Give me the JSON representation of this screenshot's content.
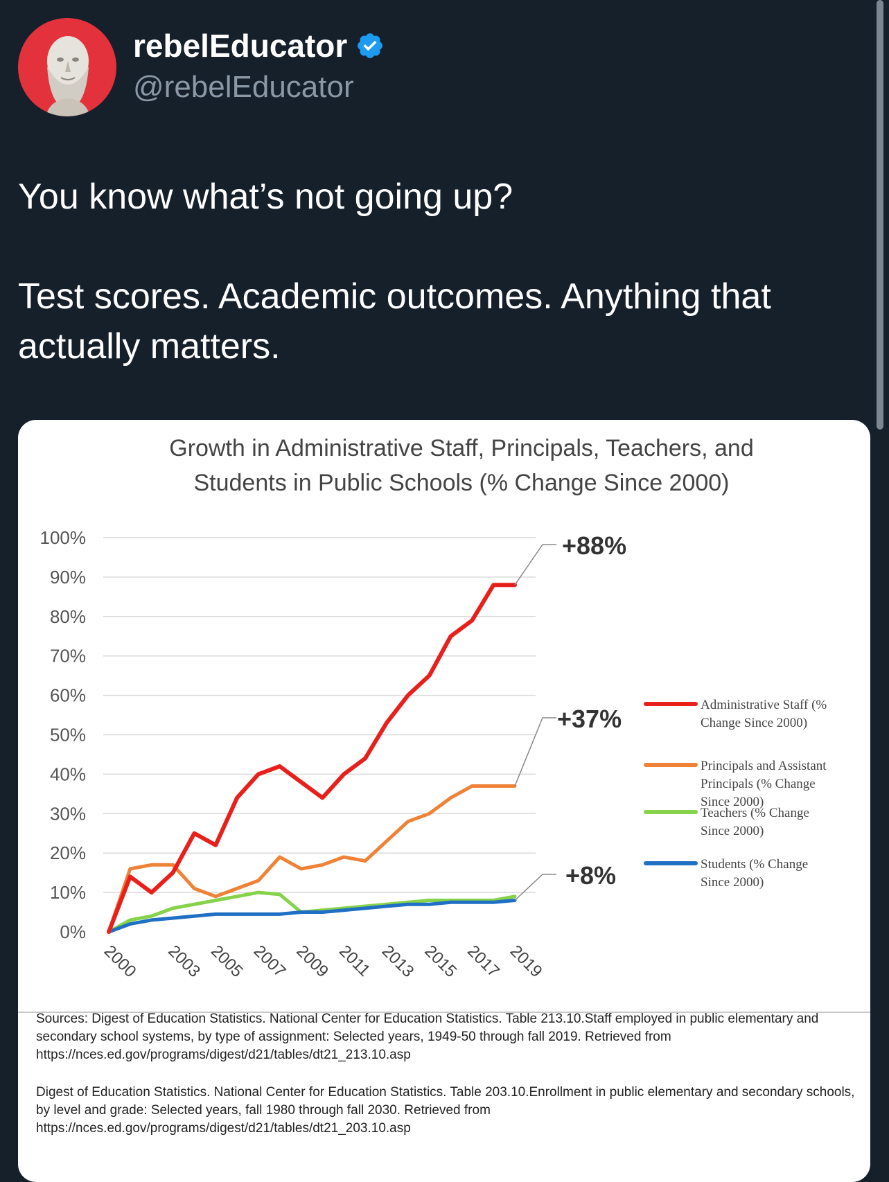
{
  "author": {
    "display_name": "rebelEducator",
    "handle": "@rebelEducator",
    "verified_icon": "verified-badge-icon",
    "avatar_icon": "bust-portrait-icon"
  },
  "tweet": {
    "paragraphs": [
      "You know what’s not going up?",
      "Test scores. Academic outcomes. Anything that actually matters."
    ]
  },
  "chart_data": {
    "type": "line",
    "title": "Growth in Administrative Staff, Principals, Teachers, and Students in Public Schools (% Change Since 2000)",
    "title_lines": [
      "Growth in Administrative Staff, Principals, Teachers, and",
      "Students in Public Schools (% Change Since 2000)"
    ],
    "ylim": [
      0,
      100
    ],
    "y_ticks": [
      "100%",
      "90%",
      "80%",
      "70%",
      "60%",
      "50%",
      "40%",
      "30%",
      "20%",
      "10%",
      "0%"
    ],
    "x_tick_labels": [
      "2000",
      "2003",
      "2005",
      "2007",
      "2009",
      "2011",
      "2013",
      "2015",
      "2017",
      "2019"
    ],
    "x_range": [
      2000,
      2019
    ],
    "grid": true,
    "legend_position": "right",
    "series": [
      {
        "name": "Administrative Staff (% Change Since 2000)",
        "legend_lines": [
          "Administrative Staff (%",
          "Change Since 2000)"
        ],
        "color": "#e8201b",
        "x": [
          2000,
          2001,
          2002,
          2003,
          2004,
          2005,
          2006,
          2007,
          2008,
          2009,
          2010,
          2011,
          2012,
          2013,
          2014,
          2015,
          2016,
          2017,
          2018,
          2019
        ],
        "y": [
          0,
          14,
          10,
          15,
          25,
          22,
          34,
          40,
          42,
          38,
          34,
          40,
          44,
          53,
          60,
          65,
          75,
          79,
          88,
          88
        ],
        "end_label": "+88%"
      },
      {
        "name": "Principals and Assistant Principals (% Change Since 2000)",
        "legend_lines": [
          "Principals and Assistant",
          "Principals (% Change",
          "Since 2000)"
        ],
        "color": "#ef8236",
        "x": [
          2000,
          2001,
          2002,
          2003,
          2004,
          2005,
          2006,
          2007,
          2008,
          2009,
          2010,
          2011,
          2012,
          2013,
          2014,
          2015,
          2016,
          2017,
          2018,
          2019
        ],
        "y": [
          0,
          16,
          17,
          17,
          11,
          9,
          11,
          13,
          19,
          16,
          17,
          19,
          18,
          23,
          28,
          30,
          34,
          37,
          37,
          37
        ],
        "end_label": "+37%"
      },
      {
        "name": "Teachers (% Change Since 2000)",
        "legend_lines": [
          "Teachers (% Change",
          "Since 2000)"
        ],
        "color": "#86d24a",
        "x": [
          2000,
          2001,
          2002,
          2003,
          2004,
          2005,
          2006,
          2007,
          2008,
          2009,
          2010,
          2011,
          2012,
          2013,
          2014,
          2015,
          2016,
          2017,
          2018,
          2019
        ],
        "y": [
          0,
          3,
          4,
          6,
          7,
          8,
          9,
          10,
          9.5,
          5,
          5.5,
          6,
          6.5,
          7,
          7.5,
          8,
          8,
          8,
          8,
          9
        ]
      },
      {
        "name": "Students (% Change Since 2000)",
        "legend_lines": [
          "Students (% Change",
          "Since 2000)"
        ],
        "color": "#1f6fc5",
        "x": [
          2000,
          2001,
          2002,
          2003,
          2004,
          2005,
          2006,
          2007,
          2008,
          2009,
          2010,
          2011,
          2012,
          2013,
          2014,
          2015,
          2016,
          2017,
          2018,
          2019
        ],
        "y": [
          0,
          2,
          3,
          3.5,
          4,
          4.5,
          4.5,
          4.5,
          4.5,
          5,
          5,
          5.5,
          6,
          6.5,
          7,
          7,
          7.5,
          7.5,
          7.5,
          8
        ],
        "end_label": "+8%"
      }
    ]
  },
  "sources": {
    "paragraphs": [
      "Sources: Digest of Education Statistics. National Center for Education Statistics. Table 213.10.Staff employed in public elementary and secondary school systems, by type of assignment: Selected years, 1949-50 through fall 2019. Retrieved from https://nces.ed.gov/programs/digest/d21/tables/dt21_213.10.asp",
      "Digest of Education Statistics. National Center for Education Statistics. Table 203.10.Enrollment in public elementary and secondary schools, by level and grade: Selected years, fall 1980 through fall 2030. Retrieved from https://nces.ed.gov/programs/digest/d21/tables/dt21_203.10.asp"
    ]
  }
}
